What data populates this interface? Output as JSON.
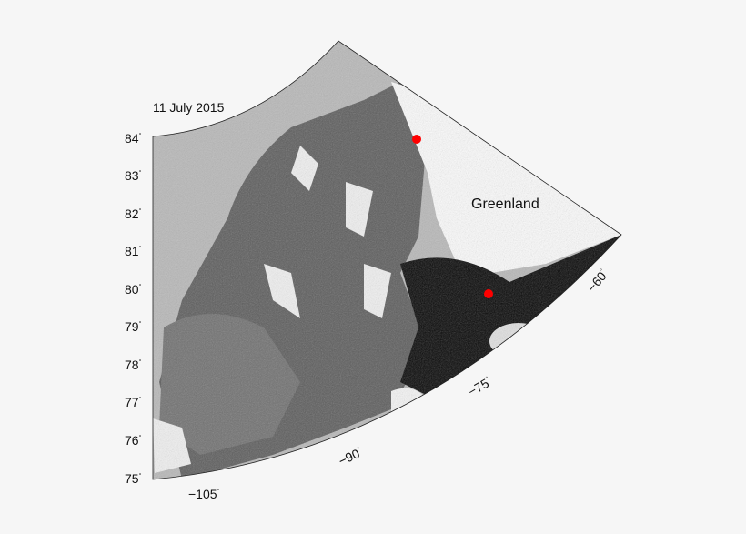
{
  "title": "11 July 2015",
  "region_label": "Greenland",
  "latitude_labels": [
    "84",
    "83",
    "82",
    "81",
    "80",
    "79",
    "78",
    "77",
    "76",
    "75"
  ],
  "longitude_labels": [
    "−105",
    "−90",
    "−75",
    "−60"
  ],
  "degree_symbol": "°",
  "markers": [
    {
      "name": "red-marker-north",
      "color": "#ff0000"
    },
    {
      "name": "red-marker-south",
      "color": "#ff0000"
    }
  ],
  "colors": {
    "background": "#f6f6f6",
    "marker": "#ff0000",
    "water": "#050505",
    "ice": "#ffffff"
  }
}
